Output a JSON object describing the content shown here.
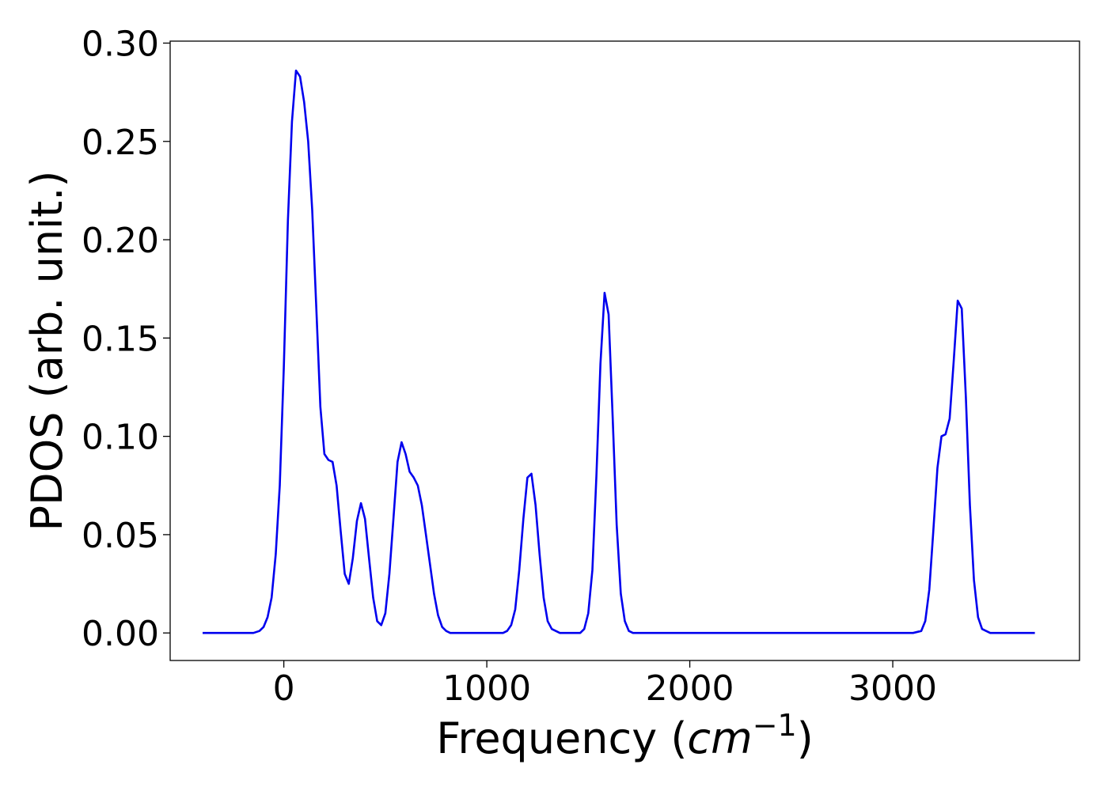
{
  "chart_data": {
    "type": "line",
    "title": "",
    "xlabel": "Frequency ($cm^{-1}$)",
    "xlabel_parts": {
      "main": "Frequency (",
      "math": "cm",
      "sup": "−1",
      "close": ")"
    },
    "ylabel": "PDOS (arb. unit.)",
    "xlim": [
      -560,
      3920
    ],
    "ylim": [
      -0.014,
      0.301
    ],
    "xticks": [
      0,
      1000,
      2000,
      3000
    ],
    "xtick_labels": [
      "0",
      "1000",
      "2000",
      "3000"
    ],
    "yticks": [
      0.0,
      0.05,
      0.1,
      0.15,
      0.2,
      0.25,
      0.3
    ],
    "ytick_labels": [
      "0.00",
      "0.05",
      "0.10",
      "0.15",
      "0.20",
      "0.25",
      "0.30"
    ],
    "grid": false,
    "legend": "none",
    "series": [
      {
        "color": "#0000ee",
        "x": [
          -400,
          -150,
          -120,
          -100,
          -80,
          -60,
          -40,
          -20,
          0,
          20,
          40,
          60,
          80,
          100,
          120,
          140,
          160,
          180,
          200,
          220,
          240,
          260,
          280,
          300,
          320,
          340,
          360,
          380,
          400,
          420,
          440,
          460,
          480,
          500,
          520,
          540,
          560,
          580,
          600,
          620,
          640,
          660,
          680,
          700,
          720,
          740,
          760,
          780,
          800,
          820,
          840,
          860,
          900,
          1000,
          1080,
          1100,
          1120,
          1140,
          1160,
          1180,
          1200,
          1220,
          1240,
          1260,
          1280,
          1300,
          1320,
          1340,
          1360,
          1400,
          1460,
          1480,
          1500,
          1520,
          1540,
          1560,
          1580,
          1600,
          1620,
          1640,
          1660,
          1680,
          1700,
          1720,
          1760,
          2000,
          3000,
          3100,
          3140,
          3160,
          3180,
          3200,
          3220,
          3240,
          3260,
          3280,
          3300,
          3320,
          3340,
          3360,
          3380,
          3400,
          3420,
          3440,
          3460,
          3480,
          3500,
          3550,
          3700
        ],
        "y": [
          0.0,
          0.0,
          0.001,
          0.003,
          0.008,
          0.018,
          0.04,
          0.075,
          0.135,
          0.21,
          0.26,
          0.286,
          0.283,
          0.27,
          0.25,
          0.215,
          0.165,
          0.115,
          0.091,
          0.088,
          0.087,
          0.075,
          0.052,
          0.03,
          0.025,
          0.038,
          0.057,
          0.066,
          0.058,
          0.038,
          0.018,
          0.006,
          0.004,
          0.01,
          0.03,
          0.058,
          0.087,
          0.097,
          0.091,
          0.082,
          0.079,
          0.075,
          0.065,
          0.05,
          0.035,
          0.02,
          0.009,
          0.003,
          0.001,
          0.0,
          0.0,
          0.0,
          0.0,
          0.0,
          0.0,
          0.001,
          0.004,
          0.012,
          0.032,
          0.058,
          0.079,
          0.081,
          0.065,
          0.04,
          0.018,
          0.006,
          0.002,
          0.001,
          0.0,
          0.0,
          0.0,
          0.002,
          0.01,
          0.032,
          0.08,
          0.137,
          0.173,
          0.162,
          0.11,
          0.055,
          0.02,
          0.006,
          0.001,
          0.0,
          0.0,
          0.0,
          0.0,
          0.0,
          0.001,
          0.006,
          0.022,
          0.052,
          0.084,
          0.1,
          0.101,
          0.109,
          0.138,
          0.169,
          0.165,
          0.12,
          0.065,
          0.027,
          0.008,
          0.002,
          0.001,
          0.0,
          0.0,
          0.0,
          0.0
        ]
      }
    ]
  }
}
